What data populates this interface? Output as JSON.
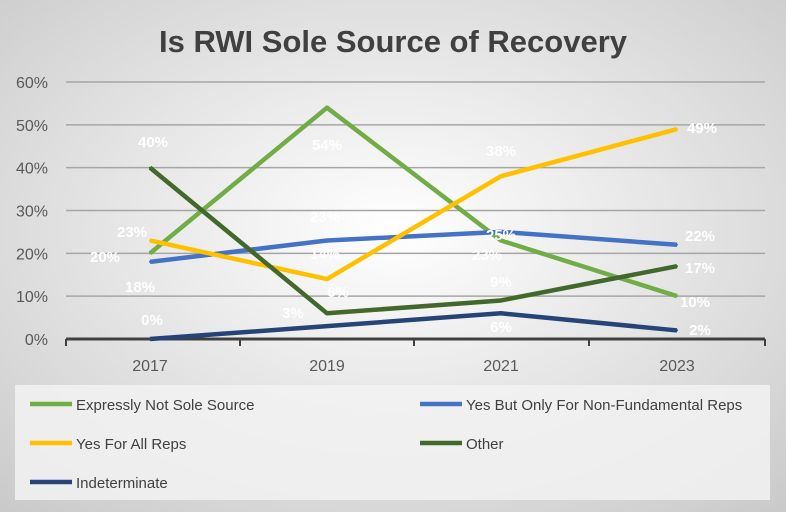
{
  "chart_data": {
    "type": "line",
    "title": "Is RWI Sole Source of Recovery",
    "xlabel": "",
    "ylabel": "",
    "categories": [
      "2017",
      "2019",
      "2021",
      "2023"
    ],
    "ylim": [
      0,
      60
    ],
    "yticks": [
      "0%",
      "10%",
      "20%",
      "30%",
      "40%",
      "50%",
      "60%"
    ],
    "grid": true,
    "legend_position": "bottom",
    "series": [
      {
        "name": "Expressly Not Sole Source",
        "color": "#70ad47",
        "values": [
          20,
          54,
          23,
          10
        ],
        "labels": [
          "20%",
          "54%",
          "23%",
          "10%"
        ]
      },
      {
        "name": "Yes But Only For Non-Fundamental Reps",
        "color": "#4472c4",
        "values": [
          18,
          23,
          25,
          22
        ],
        "labels": [
          "18%",
          "23%",
          "25%",
          "22%"
        ]
      },
      {
        "name": "Yes For All Reps",
        "color": "#ffc000",
        "values": [
          23,
          14,
          38,
          49
        ],
        "labels": [
          "23%",
          "14%",
          "38%",
          "49%"
        ]
      },
      {
        "name": "Other",
        "color": "#43682b",
        "values": [
          40,
          6,
          9,
          17
        ],
        "labels": [
          "40%",
          "6%",
          "9%",
          "17%"
        ]
      },
      {
        "name": "Indeterminate",
        "color": "#264478",
        "values": [
          0,
          3,
          6,
          2
        ],
        "labels": [
          "0%",
          "3%",
          "6%",
          "2%"
        ]
      }
    ]
  }
}
